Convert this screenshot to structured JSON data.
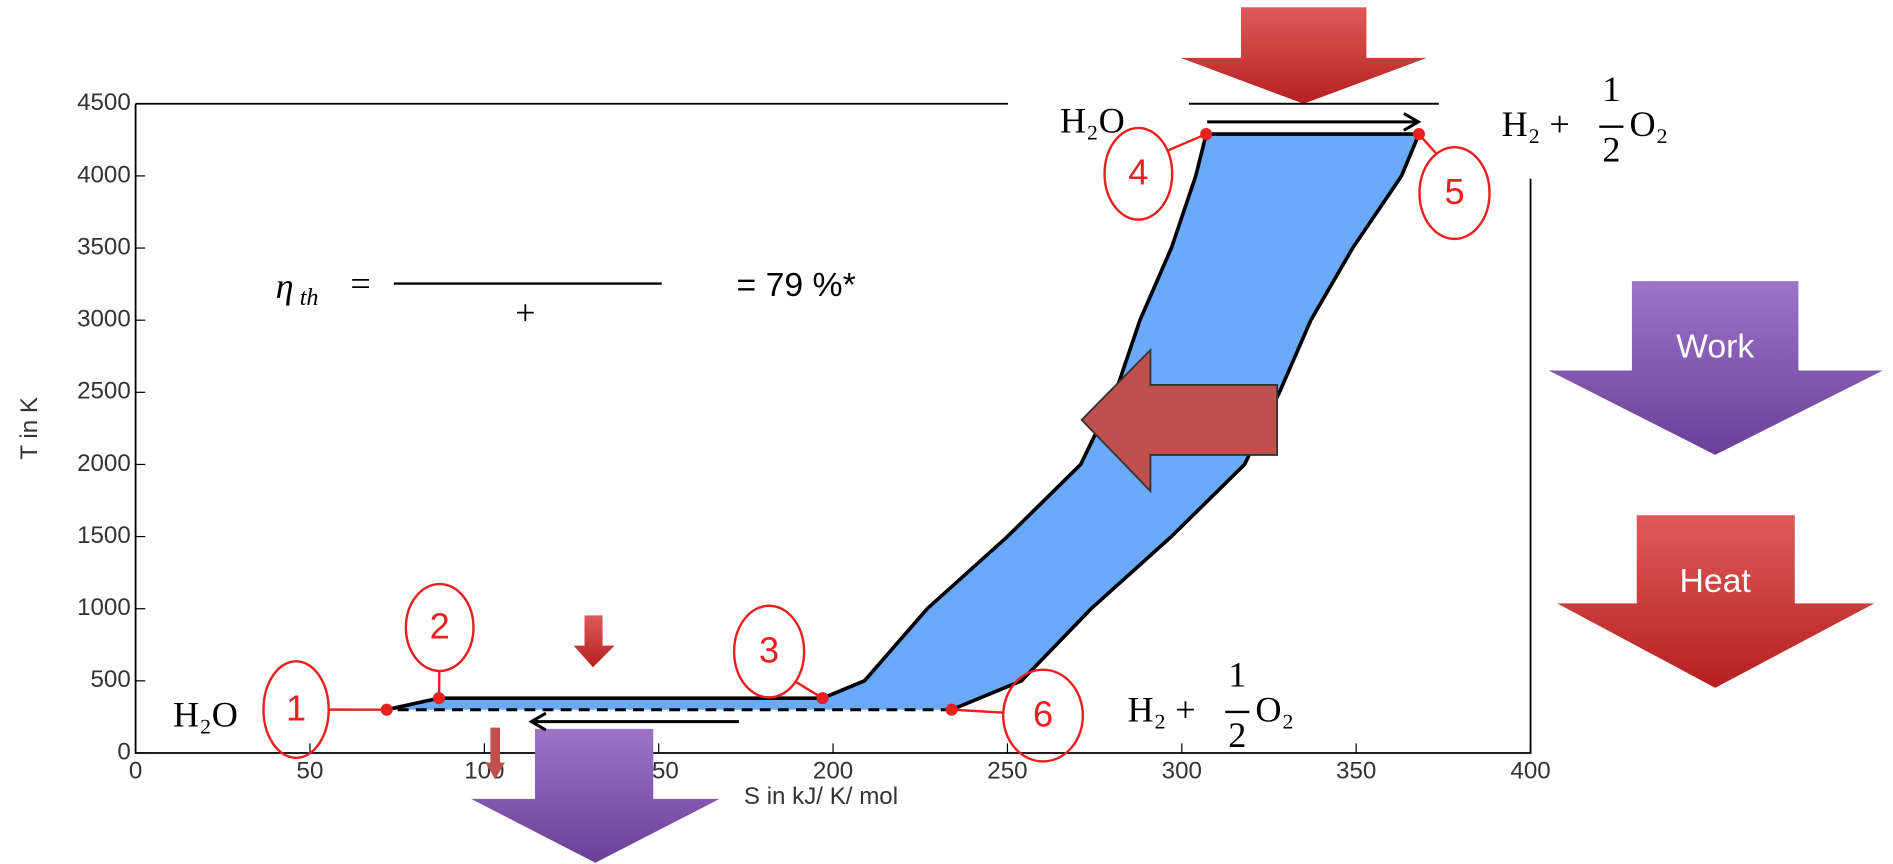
{
  "chart_data": {
    "type": "area",
    "xlabel": "S in kJ/ K/ mol",
    "ylabel": "T in K",
    "xlim": [
      0,
      400
    ],
    "ylim": [
      0,
      4500
    ],
    "xticks": [
      0,
      50,
      100,
      150,
      200,
      250,
      300,
      350,
      400
    ],
    "yticks": [
      0,
      500,
      1000,
      1500,
      2000,
      2500,
      3000,
      3500,
      4000,
      4500
    ],
    "color": "#6aa9f7",
    "x": [
      72,
      87,
      197,
      209,
      227,
      250,
      271,
      281,
      288,
      297,
      304,
      307,
      368,
      363,
      349,
      337,
      328,
      318,
      297,
      274,
      254,
      234
    ],
    "values": [
      300,
      380,
      380,
      500,
      1000,
      1500,
      2000,
      2500,
      3000,
      3500,
      4000,
      4290,
      4290,
      4000,
      3500,
      3000,
      2500,
      2000,
      1500,
      1000,
      500,
      300
    ],
    "points": {
      "color": "#e8201f",
      "labels": [
        "1",
        "2",
        "3",
        "4",
        "5",
        "6"
      ],
      "x": [
        72,
        87,
        197,
        307,
        368,
        234
      ],
      "values": [
        300,
        380,
        380,
        4290,
        4290,
        300
      ]
    },
    "formula": {
      "eta": "η",
      "sub": "th",
      "eq": "=",
      "plus": "+",
      "result": "= 79 %*"
    },
    "species": {
      "water_low": "H₂O",
      "water_high": "H₂O",
      "products_low": {
        "lhs": "H₂ +",
        "num": "1",
        "den": "2",
        "rhs": "O₂"
      },
      "products_high": {
        "lhs": "H₂ +",
        "num": "1",
        "den": "2",
        "rhs": "O₂"
      }
    },
    "legend": {
      "work": "Work",
      "heat": "Heat"
    }
  }
}
